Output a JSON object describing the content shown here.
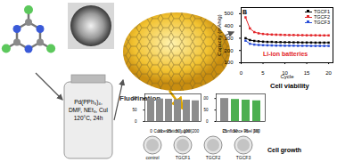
{
  "reaction": {
    "conditions": [
      "Pd(PPh₃)₄,",
      "DMF, NEt₃, CuI",
      "120°C, 24h"
    ]
  },
  "labels": {
    "fluorination": "Fluorination",
    "cell_viability": "Cell viability",
    "cell_growth": "Cell growth"
  },
  "dishes": [
    "control",
    "TGCF1",
    "TGCF2",
    "TGCF3"
  ],
  "chart_data": [
    {
      "type": "line",
      "annotations": [
        "B",
        "Li-ion batteries"
      ],
      "x_label": "Cycle",
      "y_label": "Capacity (mAh/g)",
      "x": [
        1,
        2,
        3,
        4,
        5,
        6,
        7,
        8,
        9,
        10,
        11,
        12,
        13,
        14,
        15,
        16,
        17,
        18,
        19,
        20
      ],
      "series": [
        {
          "name": "TGCF1",
          "color": "#000000",
          "values": [
            300,
            285,
            278,
            275,
            272,
            270,
            270,
            268,
            268,
            267,
            267,
            266,
            266,
            265,
            265,
            265,
            264,
            264,
            264,
            264
          ]
        },
        {
          "name": "TGCF2",
          "color": "#e3262a",
          "values": [
            470,
            380,
            350,
            340,
            335,
            332,
            330,
            329,
            328,
            327,
            326,
            326,
            325,
            325,
            324,
            324,
            324,
            323,
            323,
            323
          ]
        },
        {
          "name": "TGCF3",
          "color": "#2b4fd8",
          "values": [
            280,
            255,
            248,
            245,
            243,
            242,
            241,
            240,
            240,
            239,
            239,
            239,
            238,
            238,
            238,
            237,
            237,
            237,
            237,
            237
          ]
        }
      ],
      "marker": "square",
      "xlim": [
        0,
        21
      ],
      "xticks": [
        0,
        5,
        10,
        15,
        20
      ],
      "ylim": [
        100,
        550
      ],
      "yticks": [
        100,
        200,
        300,
        400,
        500
      ],
      "legend": "upper right"
    },
    {
      "type": "bar",
      "x_label": "Concentration [µg/ml]",
      "categories": [
        "0",
        "10",
        "25",
        "50",
        "100",
        "200"
      ],
      "values": [
        100,
        98,
        97,
        95,
        93,
        90
      ],
      "color": "#8c8c8c",
      "ylim": [
        0,
        120
      ],
      "yticks": [
        0,
        50,
        100
      ]
    },
    {
      "type": "bar",
      "x_label": "Confluence level [%]",
      "categories": [
        "25",
        "50",
        "75",
        "100"
      ],
      "values": [
        100,
        96,
        93,
        90
      ],
      "colors": [
        "#8c8c8c",
        "#4caf50",
        "#4caf50",
        "#4caf50"
      ],
      "ylim": [
        0,
        120
      ],
      "yticks": [
        0,
        50,
        100
      ]
    }
  ]
}
